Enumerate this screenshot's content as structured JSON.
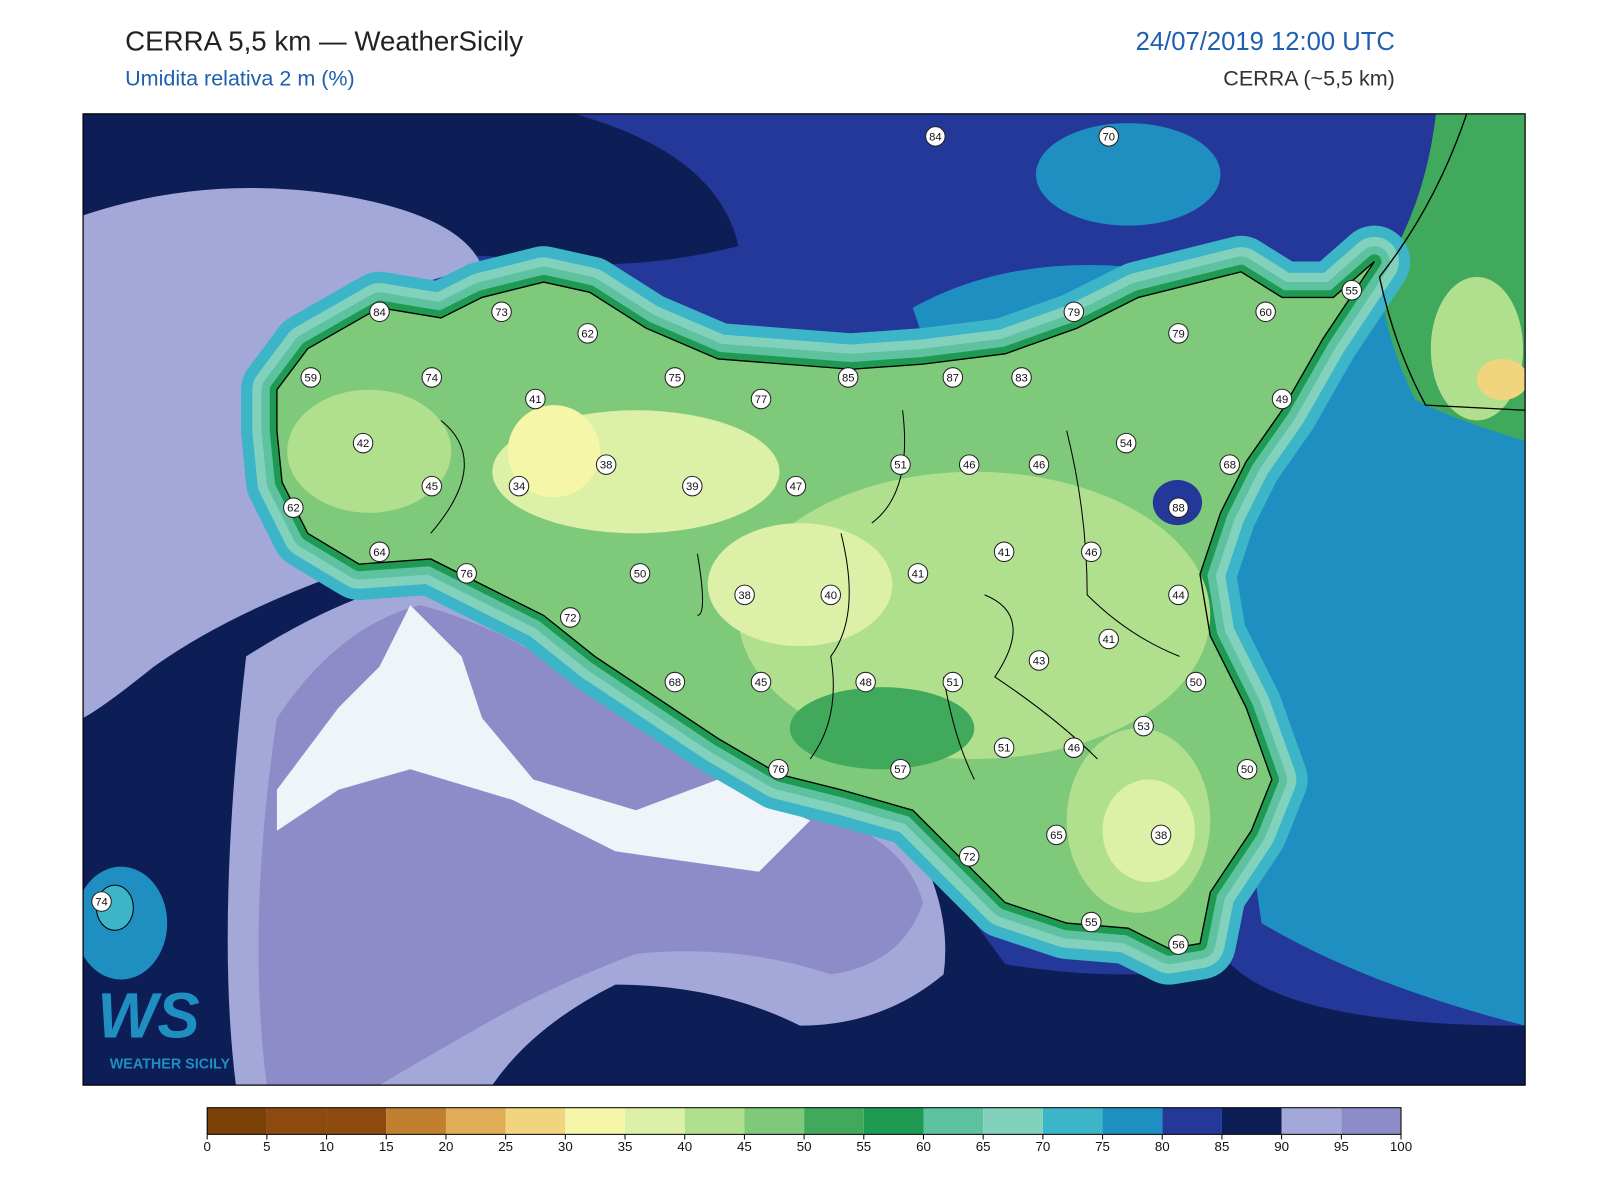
{
  "header": {
    "title": "CERRA 5,5 km — WeatherSicily",
    "subtitle": "Umidita relativa 2 m (%)",
    "datetime": "24/07/2019 12:00 UTC",
    "model": "CERRA (~5,5 km)"
  },
  "stations": [
    84,
    70,
    84,
    73,
    62,
    79,
    60,
    55,
    79,
    59,
    74,
    75,
    85,
    87,
    83,
    77,
    41,
    49,
    42,
    54,
    38,
    39,
    47,
    51,
    46,
    46,
    68,
    34,
    45,
    62,
    88,
    64,
    76,
    41,
    46,
    50,
    41,
    38,
    40,
    44,
    72,
    41,
    43,
    68,
    45,
    48,
    51,
    50,
    53,
    51,
    46,
    50,
    76,
    57,
    65,
    38,
    72,
    74,
    55,
    56
  ],
  "colorbar": {
    "ticks": [
      0,
      5,
      10,
      15,
      20,
      25,
      30,
      35,
      40,
      45,
      50,
      55,
      60,
      65,
      70,
      75,
      80,
      85,
      90,
      95,
      100
    ],
    "colors": [
      "#7a4008",
      "#8c4a0e",
      "#8c4a0e",
      "#c07f2e",
      "#e0ad57",
      "#f1d57e",
      "#f6f6a8",
      "#dcf0a8",
      "#b0e08e",
      "#7fc97a",
      "#40a95c",
      "#1e9a52",
      "#5ec2a0",
      "#82d1bd",
      "#3bb5c7",
      "#1f8fc2",
      "#24389a",
      "#0d1d55",
      "#a4a8d8",
      "#8e8cc8"
    ]
  },
  "logo": {
    "mark": "WS",
    "text": "WEATHER SICILY"
  }
}
